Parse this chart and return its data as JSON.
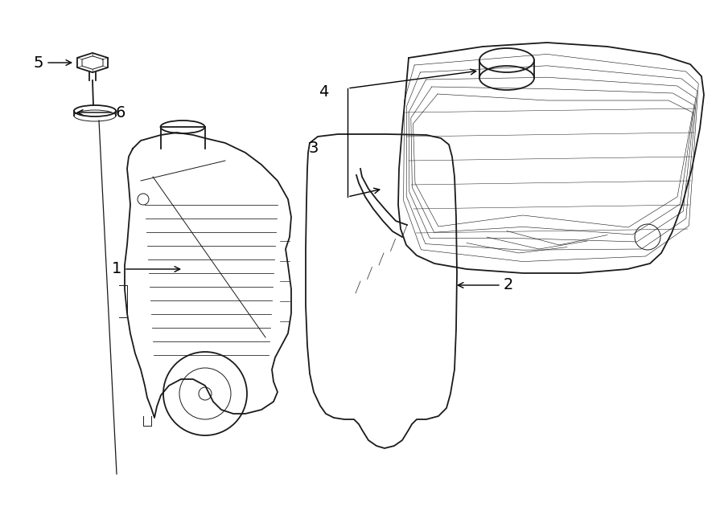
{
  "background_color": "#ffffff",
  "line_color": "#1a1a1a",
  "label_color": "#000000",
  "arrow_color": "#000000",
  "fig_width": 9.0,
  "fig_height": 6.61,
  "dpi": 100
}
